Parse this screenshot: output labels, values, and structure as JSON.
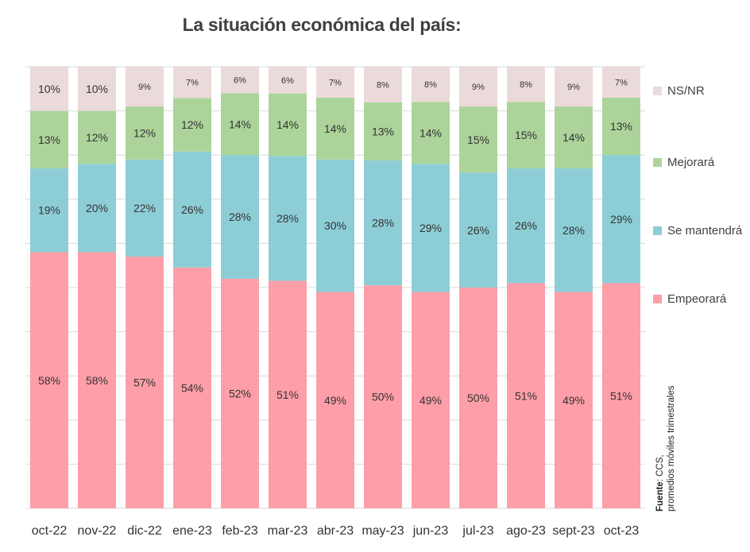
{
  "chart_data": {
    "type": "bar",
    "stacked": true,
    "normalized": true,
    "title": "La situación económica del país:",
    "categories": [
      "oct-22",
      "nov-22",
      "dic-22",
      "ene-23",
      "feb-23",
      "mar-23",
      "abr-23",
      "may-23",
      "jun-23",
      "jul-23",
      "ago-23",
      "sept-23",
      "oct-23"
    ],
    "series": [
      {
        "name": "Empeorará",
        "color": "#fd9ea8",
        "values": [
          58,
          58,
          57,
          54,
          52,
          51,
          49,
          50,
          49,
          50,
          51,
          49,
          51
        ]
      },
      {
        "name": "Se mantendrá",
        "color": "#8dced6",
        "values": [
          19,
          20,
          22,
          26,
          28,
          28,
          30,
          28,
          29,
          26,
          26,
          28,
          29
        ]
      },
      {
        "name": "Mejorará",
        "color": "#acd49a",
        "values": [
          13,
          12,
          12,
          12,
          14,
          14,
          14,
          13,
          14,
          15,
          15,
          14,
          13
        ]
      },
      {
        "name": "NS/NR",
        "color": "#ebdada",
        "values": [
          10,
          10,
          9,
          7,
          6,
          6,
          7,
          8,
          8,
          9,
          8,
          9,
          7
        ]
      }
    ],
    "value_suffix": "%",
    "legend_order": [
      "NS/NR",
      "Mejorará",
      "Se mantendrá",
      "Empeorará"
    ],
    "legend_position": "right",
    "grid": true
  },
  "source": {
    "label": "Fuente",
    "text": ": CCS,",
    "note": "promedios móviles trimestrales"
  }
}
